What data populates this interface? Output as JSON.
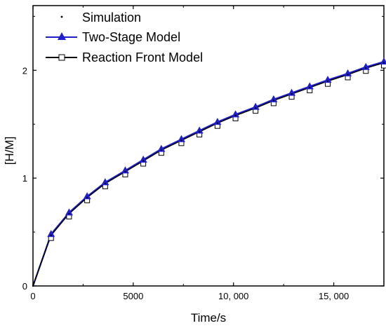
{
  "chart_data": {
    "type": "line",
    "title": "",
    "xlabel": "Time/s",
    "ylabel": "[H/M]",
    "xlim": [
      0,
      17500
    ],
    "ylim": [
      0,
      2.6
    ],
    "x_ticks": [
      0,
      5000,
      10000,
      15000
    ],
    "x_tick_labels": [
      "0",
      "5000",
      "10, 000",
      "15, 000"
    ],
    "y_ticks": [
      0,
      1,
      2
    ],
    "y_tick_labels": [
      "0",
      "1",
      "2"
    ],
    "grid": false,
    "legend_position": "top-left",
    "colors": {
      "simulation": "#000000",
      "two_stage": "#1f1fd1",
      "reaction_front": "#000000"
    },
    "series": [
      {
        "name": "Simulation",
        "marker": "dot",
        "x": [
          0,
          900,
          1800,
          2700,
          3600,
          4600,
          5500,
          6400,
          7400,
          8300,
          9200,
          10100,
          11100,
          12000,
          12900,
          13800,
          14700,
          15700,
          16600,
          17500
        ],
        "y": [
          0,
          0.47,
          0.67,
          0.82,
          0.95,
          1.06,
          1.16,
          1.26,
          1.35,
          1.43,
          1.51,
          1.58,
          1.65,
          1.72,
          1.78,
          1.84,
          1.9,
          1.96,
          2.02,
          2.07
        ]
      },
      {
        "name": "Two-Stage Model",
        "marker": "triangle",
        "x": [
          0,
          900,
          1800,
          2700,
          3600,
          4600,
          5500,
          6400,
          7400,
          8300,
          9200,
          10100,
          11100,
          12000,
          12900,
          13800,
          14700,
          15700,
          16600,
          17500
        ],
        "y": [
          0,
          0.48,
          0.68,
          0.83,
          0.96,
          1.07,
          1.17,
          1.27,
          1.36,
          1.44,
          1.52,
          1.59,
          1.66,
          1.73,
          1.79,
          1.85,
          1.91,
          1.97,
          2.03,
          2.08
        ]
      },
      {
        "name": "Reaction Front Model",
        "marker": "square",
        "x": [
          0,
          900,
          1800,
          2700,
          3600,
          4600,
          5500,
          6400,
          7400,
          8300,
          9200,
          10100,
          11100,
          12000,
          12900,
          13800,
          14700,
          15700,
          16600,
          17500
        ],
        "y": [
          0,
          0.47,
          0.67,
          0.82,
          0.95,
          1.06,
          1.16,
          1.26,
          1.35,
          1.43,
          1.51,
          1.58,
          1.65,
          1.72,
          1.78,
          1.84,
          1.9,
          1.96,
          2.02,
          2.07
        ]
      }
    ]
  }
}
